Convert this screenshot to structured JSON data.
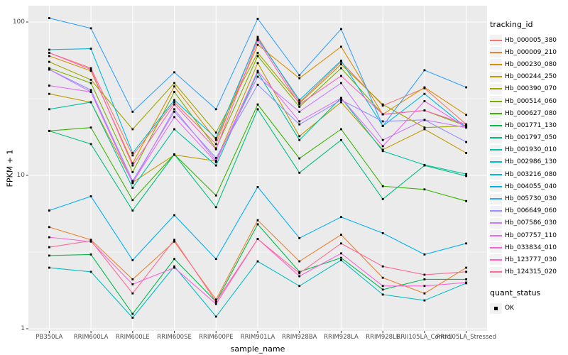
{
  "legend": {
    "color_title": "tracking_id",
    "shape_title": "quant_status",
    "shape_item": "OK"
  },
  "chart_data": {
    "type": "line",
    "x_type": "categorical",
    "y_scale": "log10",
    "title": "",
    "xlabel": "sample_name",
    "ylabel": "FPKM + 1",
    "y_ticks": [
      1,
      10,
      100
    ],
    "y_minor_gridlines": [
      3.162,
      31.623
    ],
    "ylim": [
      0.95,
      115
    ],
    "legend_position": "right",
    "grid": true,
    "panel_bg": "#EBEBEB",
    "grid_color": "#FFFFFF",
    "axis_text_color": "#4D4D4D",
    "marker": {
      "shape": "square",
      "color": "#000000",
      "status_label": "OK"
    },
    "categories": [
      "PB350LA",
      "RRIM600LA",
      "RRIM600LE",
      "RRIM600SE",
      "RRIM600PE",
      "RRIM901LA",
      "RRIM928BA",
      "RRIM928LA",
      "RRIM928LE",
      "RRII105LA_Control",
      "RRII105LA_Stressed"
    ],
    "series": [
      {
        "name": "Hb_000005_380",
        "color": "#F8766D",
        "values": [
          63,
          50,
          13.5,
          30,
          16,
          80,
          30,
          55,
          28.5,
          37,
          21.5
        ]
      },
      {
        "name": "Hb_000009_210",
        "color": "#EA8331",
        "values": [
          4.6,
          3.8,
          2.1,
          3.7,
          1.55,
          5.1,
          2.75,
          4.1,
          2.15,
          1.7,
          2.5
        ]
      },
      {
        "name": "Hb_000230_080",
        "color": "#D89000",
        "values": [
          60,
          48,
          12,
          38,
          17,
          71,
          43,
          69,
          25,
          37.5,
          24.8
        ]
      },
      {
        "name": "Hb_000244_250",
        "color": "#C09B00",
        "values": [
          34,
          30,
          9,
          13.6,
          12.4,
          54,
          18,
          30,
          14.7,
          20,
          14
        ]
      },
      {
        "name": "Hb_000390_070",
        "color": "#A3A500",
        "values": [
          55,
          42,
          20,
          40,
          19,
          63,
          29.5,
          53,
          29,
          20.5,
          21
        ]
      },
      {
        "name": "Hb_000514_060",
        "color": "#7CAE00",
        "values": [
          50,
          40,
          10.5,
          35,
          15,
          60,
          28,
          50,
          25,
          26.5,
          21
        ]
      },
      {
        "name": "Hb_000627_080",
        "color": "#39B600",
        "values": [
          19.5,
          20.5,
          6.9,
          13.7,
          7.4,
          29,
          12.9,
          20,
          8.5,
          8.1,
          6.8
        ]
      },
      {
        "name": "Hb_001771_130",
        "color": "#00BB4E",
        "values": [
          3.0,
          3.05,
          1.25,
          2.85,
          1.5,
          4.8,
          2.35,
          2.9,
          1.8,
          2.1,
          2.1
        ]
      },
      {
        "name": "Hb_001797_050",
        "color": "#00BF7D",
        "values": [
          19.5,
          16,
          5.9,
          13.7,
          6.2,
          27,
          10.4,
          17,
          7.0,
          11.6,
          9.9
        ]
      },
      {
        "name": "Hb_001930_010",
        "color": "#00C1A3",
        "values": [
          27,
          30,
          8.3,
          20,
          11.6,
          47,
          17,
          32,
          14.4,
          11.7,
          10.2
        ]
      },
      {
        "name": "Hb_002986_130",
        "color": "#00BFC4",
        "values": [
          2.5,
          2.35,
          1.18,
          2.55,
          1.2,
          2.75,
          1.9,
          2.8,
          1.67,
          1.53,
          1.98
        ]
      },
      {
        "name": "Hb_003216_080",
        "color": "#00BAE0",
        "values": [
          66,
          67,
          14,
          31,
          17.5,
          78,
          31,
          56,
          21,
          34,
          20.5
        ]
      },
      {
        "name": "Hb_004055_040",
        "color": "#00B0F6",
        "values": [
          5.9,
          7.3,
          2.8,
          5.5,
          2.85,
          8.4,
          3.9,
          5.35,
          4.2,
          3.05,
          3.6
        ]
      },
      {
        "name": "Hb_005730_030",
        "color": "#35A2FF",
        "values": [
          106,
          91,
          26,
          47,
          27,
          105,
          45,
          90,
          21,
          48.5,
          37.5
        ]
      },
      {
        "name": "Hb_006649_060",
        "color": "#9590FF",
        "values": [
          49,
          36,
          9.2,
          26,
          13,
          39,
          21.5,
          31,
          22.5,
          23,
          16.5
        ]
      },
      {
        "name": "Hb_007586_030",
        "color": "#C77CFF",
        "values": [
          49,
          35,
          8.9,
          27,
          12.5,
          44,
          26,
          40,
          17,
          23,
          20.5
        ]
      },
      {
        "name": "Hb_007757_110",
        "color": "#E76BF3",
        "values": [
          38.5,
          35,
          9,
          24,
          12.2,
          48,
          22.5,
          32,
          15.5,
          30.5,
          20.5
        ]
      },
      {
        "name": "Hb_033834_010",
        "color": "#FA62DB",
        "values": [
          3.95,
          3.7,
          1.95,
          2.5,
          1.45,
          3.85,
          2.2,
          3.1,
          1.9,
          1.9,
          2.0
        ]
      },
      {
        "name": "Hb_123777_030",
        "color": "#FF62BC",
        "values": [
          63,
          49,
          11.6,
          29,
          14.8,
          76,
          29,
          44.5,
          25,
          26.5,
          21.5
        ]
      },
      {
        "name": "Hb_124315_020",
        "color": "#FF6A98",
        "values": [
          3.4,
          3.75,
          1.7,
          3.8,
          1.5,
          3.85,
          2.3,
          3.6,
          2.55,
          2.25,
          2.35
        ]
      }
    ]
  }
}
